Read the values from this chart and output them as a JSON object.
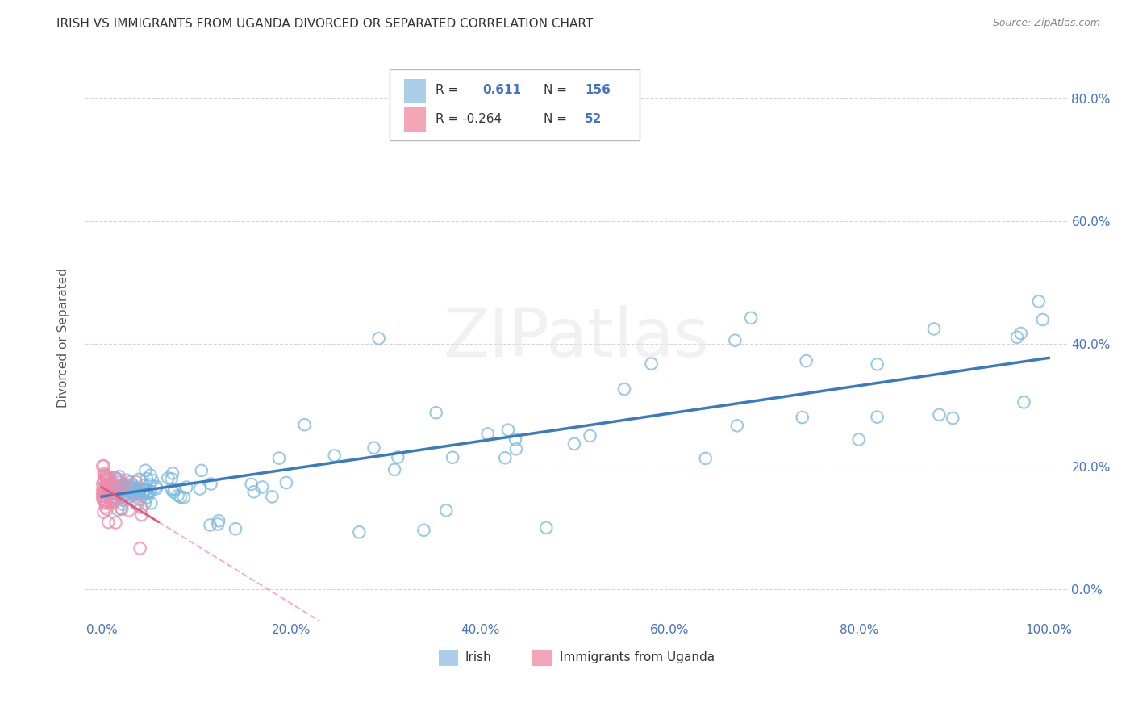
{
  "title": "IRISH VS IMMIGRANTS FROM UGANDA DIVORCED OR SEPARATED CORRELATION CHART",
  "source": "Source: ZipAtlas.com",
  "ylabel": "Divorced or Separated",
  "watermark": "ZIPatlas",
  "legend_irish_r": "0.611",
  "legend_irish_n": "156",
  "legend_uganda_r": "-0.264",
  "legend_uganda_n": "52",
  "blue_scatter_color": "#7ab8e0",
  "blue_line_color": "#3a7bbf",
  "pink_scatter_color": "#f08aaa",
  "pink_line_color": "#e05a7a",
  "background": "#ffffff",
  "grid_color": "#cccccc",
  "tick_color": "#4472c4",
  "title_color": "#333333",
  "source_color": "#888888",
  "ylabel_color": "#555555",
  "watermark_color": "#e8e8e8"
}
